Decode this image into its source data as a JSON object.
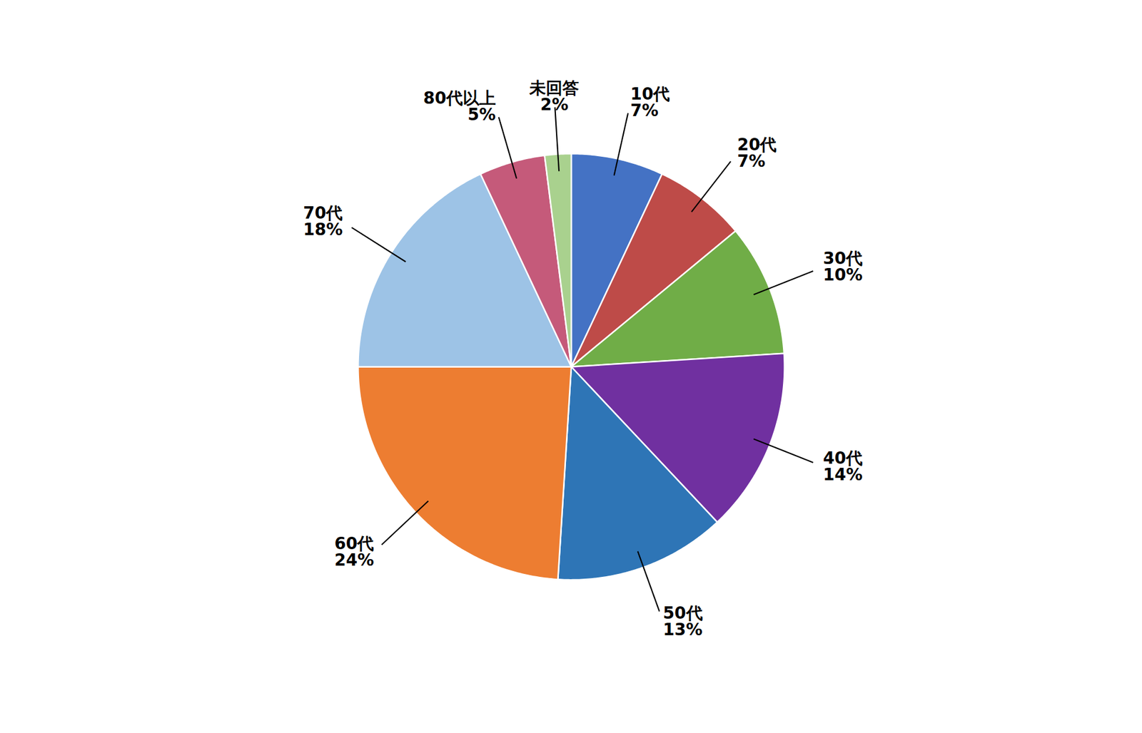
{
  "chart_data": {
    "type": "pie",
    "categories": [
      "10代",
      "20代",
      "30代",
      "40代",
      "50代",
      "60代",
      "70代",
      "80代以上",
      "未回答"
    ],
    "values": [
      7,
      7,
      10,
      14,
      13,
      24,
      18,
      5,
      2
    ],
    "value_labels": [
      "7%",
      "7%",
      "10%",
      "14%",
      "13%",
      "24%",
      "18%",
      "5%",
      "2%"
    ],
    "colors": [
      "#4472C4",
      "#BE4B48",
      "#70AD47",
      "#7030A0",
      "#2E75B6",
      "#ED7D31",
      "#9DC3E6",
      "#C55A7A",
      "#A9D18E"
    ],
    "data_labels": true
  }
}
